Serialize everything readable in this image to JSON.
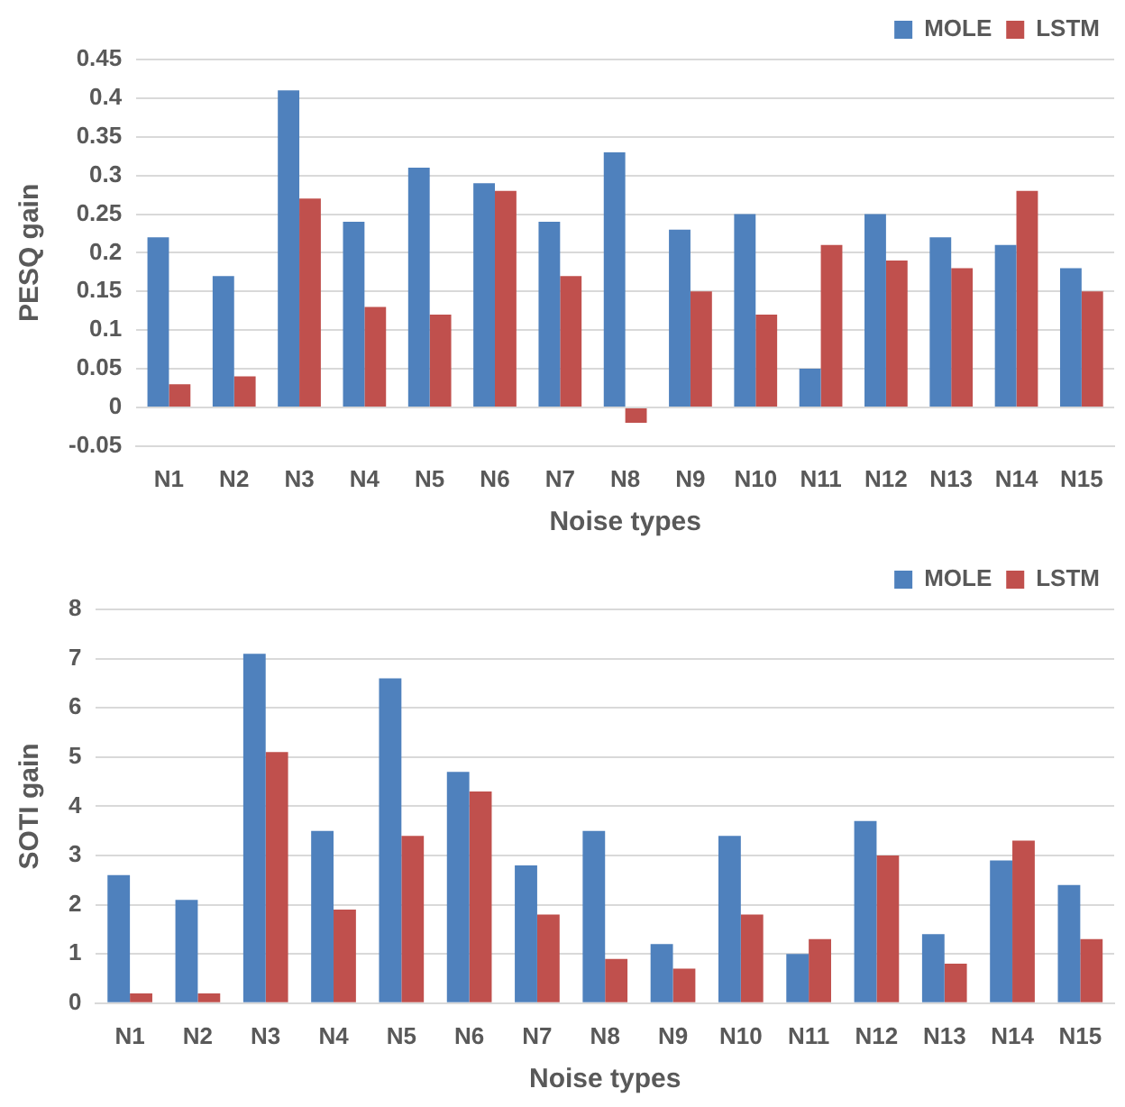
{
  "chart_data": [
    {
      "type": "bar",
      "xlabel": "Noise types",
      "ylabel": "PESQ gain",
      "categories": [
        "N1",
        "N2",
        "N3",
        "N4",
        "N5",
        "N6",
        "N7",
        "N8",
        "N9",
        "N10",
        "N11",
        "N12",
        "N13",
        "N14",
        "N15"
      ],
      "series": [
        {
          "name": "MOLE",
          "color": "#4f81bd",
          "values": [
            0.22,
            0.17,
            0.41,
            0.24,
            0.31,
            0.29,
            0.24,
            0.33,
            0.23,
            0.25,
            0.05,
            0.25,
            0.22,
            0.21,
            0.18
          ]
        },
        {
          "name": "LSTM",
          "color": "#c0504d",
          "values": [
            0.03,
            0.04,
            0.27,
            0.13,
            0.12,
            0.28,
            0.17,
            -0.02,
            0.15,
            0.12,
            0.21,
            0.19,
            0.18,
            0.28,
            0.15
          ]
        }
      ],
      "ylim": [
        -0.05,
        0.45
      ],
      "yticks": [
        -0.05,
        0,
        0.05,
        0.1,
        0.15,
        0.2,
        0.25,
        0.3,
        0.35,
        0.4,
        0.45
      ],
      "grid": "y",
      "legend": "top right"
    },
    {
      "type": "bar",
      "xlabel": "Noise types",
      "ylabel": "SOTI gain",
      "categories": [
        "N1",
        "N2",
        "N3",
        "N4",
        "N5",
        "N6",
        "N7",
        "N8",
        "N9",
        "N10",
        "N11",
        "N12",
        "N13",
        "N14",
        "N15"
      ],
      "series": [
        {
          "name": "MOLE",
          "color": "#4f81bd",
          "values": [
            2.6,
            2.1,
            7.1,
            3.5,
            6.6,
            4.7,
            2.8,
            3.5,
            1.2,
            3.4,
            1.0,
            3.7,
            1.4,
            2.9,
            2.4
          ]
        },
        {
          "name": "LSTM",
          "color": "#c0504d",
          "values": [
            0.2,
            0.2,
            5.1,
            1.9,
            3.4,
            4.3,
            1.8,
            0.9,
            0.7,
            1.8,
            1.3,
            3.0,
            0.8,
            3.3,
            1.3
          ]
        }
      ],
      "ylim": [
        0,
        8
      ],
      "yticks": [
        0,
        1,
        2,
        3,
        4,
        5,
        6,
        7,
        8
      ],
      "grid": "y",
      "legend": "top right"
    }
  ]
}
